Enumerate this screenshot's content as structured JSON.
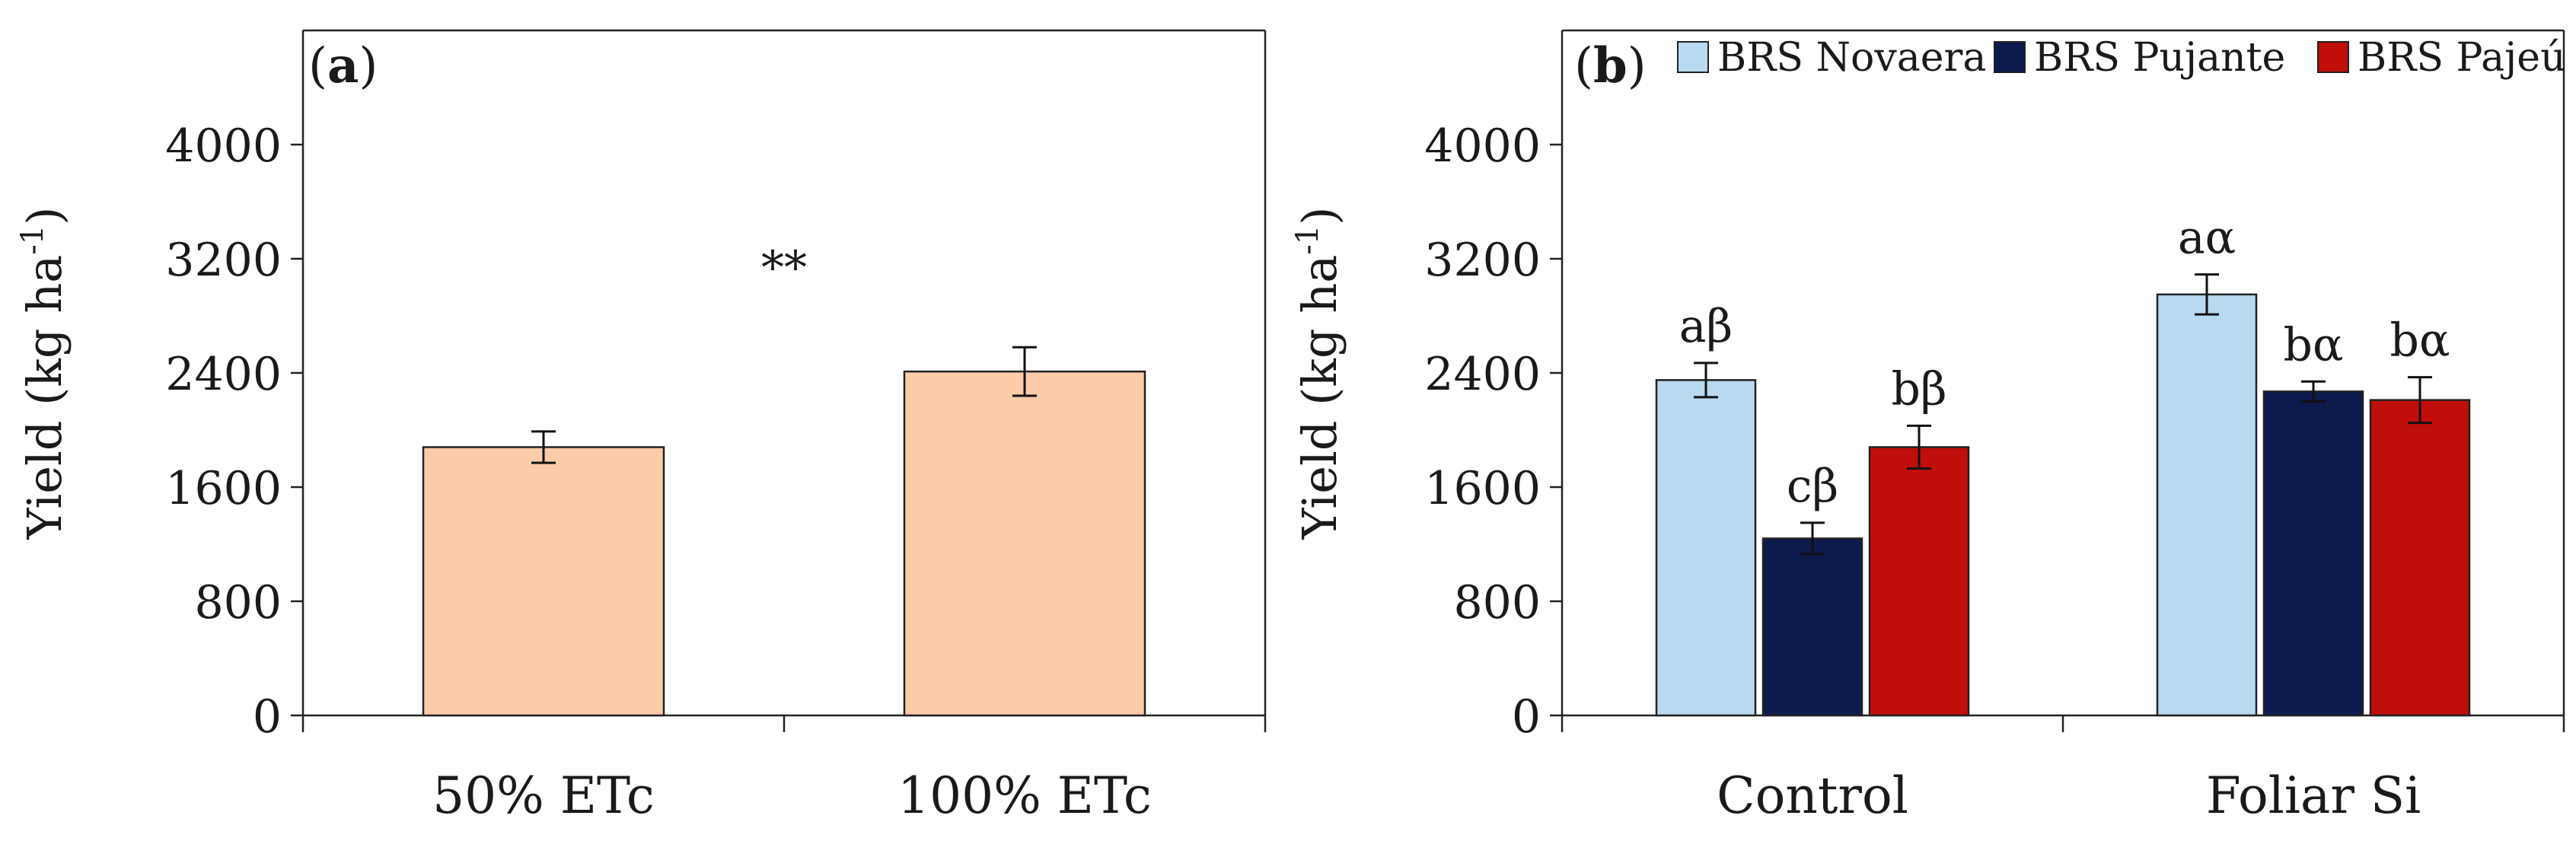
{
  "chart_data": [
    {
      "type": "bar",
      "panel_label": "(a)",
      "panel_letter": "a",
      "ylabel": "Yield (kg ha",
      "ylabel_sup": "-1",
      "ylabel_close": ")",
      "ylim": [
        0,
        4800
      ],
      "yticks": [
        0,
        800,
        1600,
        2400,
        3200,
        4000
      ],
      "ytick_labels": [
        "0",
        "800",
        "1600",
        "2400",
        "3200",
        "4000"
      ],
      "categories": [
        "50% ETc",
        "100% ETc"
      ],
      "values": [
        1880,
        2410
      ],
      "errors": [
        110,
        170
      ],
      "color": "#FBCBAA",
      "annotation": "**"
    },
    {
      "type": "bar",
      "panel_label": "(b)",
      "panel_letter": "b",
      "ylabel": "Yield (kg ha",
      "ylabel_sup": "-1",
      "ylabel_close": ")",
      "ylim": [
        0,
        4800
      ],
      "yticks": [
        0,
        800,
        1600,
        2400,
        3200,
        4000
      ],
      "ytick_labels": [
        "0",
        "800",
        "1600",
        "2400",
        "3200",
        "4000"
      ],
      "categories": [
        "Control",
        "Foliar Si"
      ],
      "legend_position": "top",
      "series": [
        {
          "name": "BRS Novaera",
          "color": "#B8D9EF",
          "values": [
            2350,
            2950
          ],
          "errors": [
            120,
            140
          ],
          "labels": [
            "aβ",
            "aα"
          ]
        },
        {
          "name": "BRS Pujante",
          "color": "#0C1A4E",
          "values": [
            1240,
            2270
          ],
          "errors": [
            110,
            70
          ],
          "labels": [
            "cβ",
            "bα"
          ]
        },
        {
          "name": "BRS Pajeú",
          "color": "#C00E0A",
          "values": [
            1880,
            2210
          ],
          "errors": [
            150,
            160
          ],
          "labels": [
            "bβ",
            "bα"
          ]
        }
      ]
    }
  ]
}
